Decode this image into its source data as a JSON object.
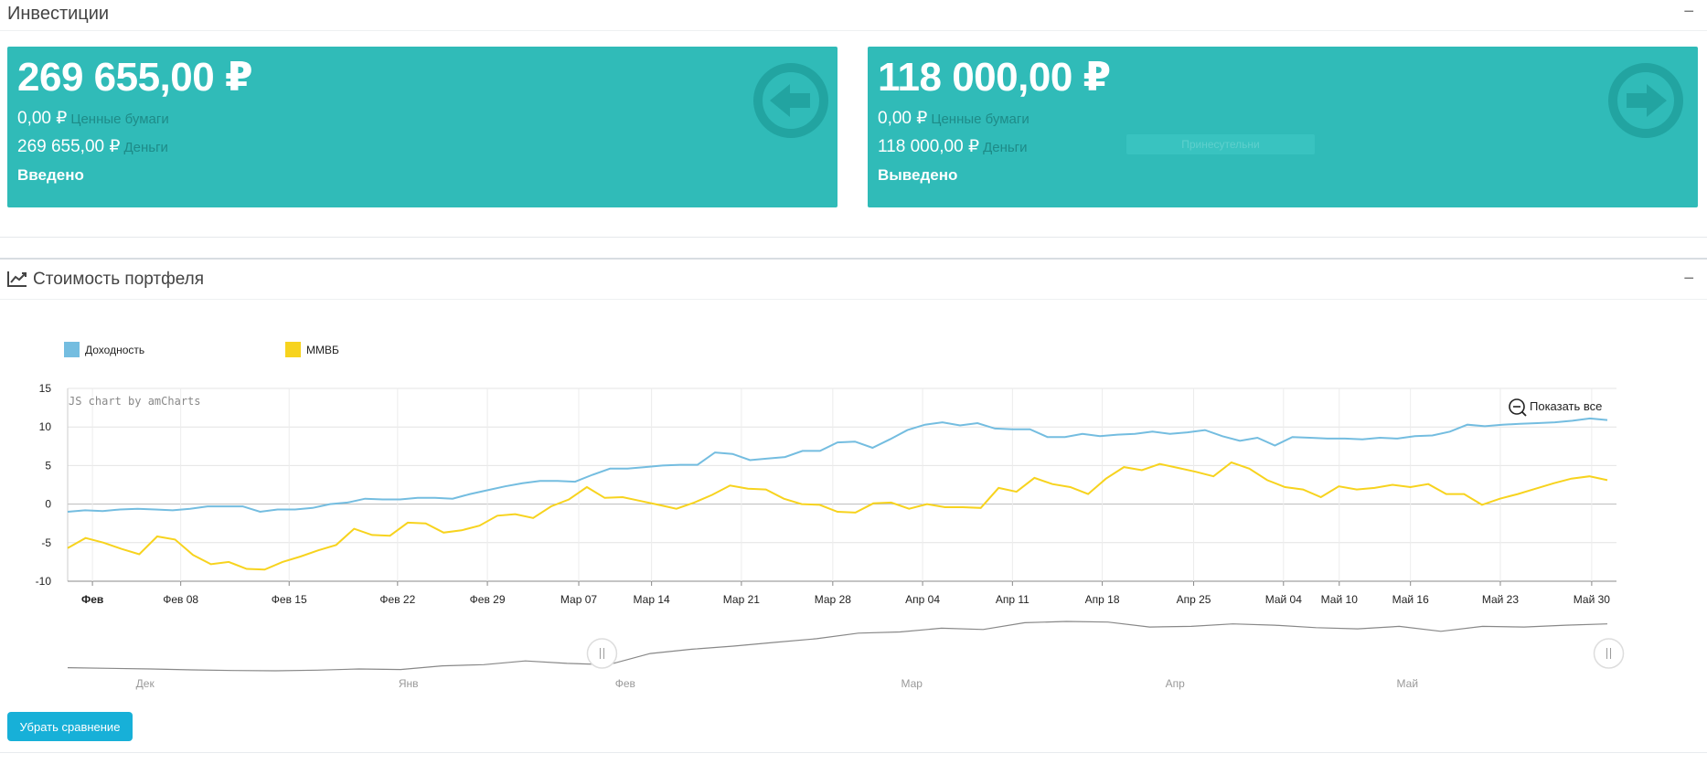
{
  "investments": {
    "title": "Инвестиции",
    "collapse": "−",
    "in": {
      "amount": "269 655,00 ₽",
      "securities_value": "0,00 ₽",
      "securities_label": "Ценные бумаги",
      "cash_value": "269 655,00 ₽",
      "cash_label": "Деньги",
      "caption": "Введено",
      "icon": "arrow-left-circle-icon"
    },
    "out": {
      "amount": "118 000,00 ₽",
      "securities_value": "0,00 ₽",
      "securities_label": "Ценные бумаги",
      "cash_value": "118 000,00 ₽",
      "cash_label": "Деньги",
      "caption": "Выведено",
      "ghost_tag": "Принесутельни",
      "icon": "arrow-right-circle-icon"
    }
  },
  "portfolio": {
    "title": "Стоимость портфеля",
    "icon": "line-chart-icon",
    "collapse": "−"
  },
  "chart_data": {
    "type": "line",
    "credit": "JS chart by amCharts",
    "zoom_out_label": "Показать все",
    "legend_position": "top-left",
    "grid": true,
    "ylim": [
      -10,
      15
    ],
    "y_ticks": [
      15,
      10,
      5,
      0,
      -5,
      -10
    ],
    "x_ticks": [
      "Фев",
      "Фев 08",
      "Фев 15",
      "Фев 22",
      "Фев 29",
      "Мар 07",
      "Мар 14",
      "Мар 21",
      "Мар 28",
      "Апр 04",
      "Апр 11",
      "Апр 18",
      "Апр 25",
      "Май 04",
      "Май 10",
      "Май 16",
      "Май 23",
      "Май 30"
    ],
    "x_tick_pos": [
      0.016,
      0.073,
      0.143,
      0.213,
      0.271,
      0.33,
      0.377,
      0.435,
      0.494,
      0.552,
      0.61,
      0.668,
      0.727,
      0.785,
      0.821,
      0.867,
      0.925,
      0.984
    ],
    "series": [
      {
        "name": "Доходность",
        "color": "#74bde0",
        "values": [
          -1.0,
          -0.8,
          -0.9,
          -0.7,
          -0.6,
          -0.7,
          -0.8,
          -0.6,
          -0.3,
          -0.3,
          -0.3,
          -1.0,
          -0.7,
          -0.7,
          -0.5,
          0.0,
          0.2,
          0.7,
          0.6,
          0.6,
          0.8,
          0.8,
          0.7,
          1.3,
          1.8,
          2.3,
          2.7,
          3.0,
          3.0,
          2.9,
          3.8,
          4.6,
          4.6,
          4.8,
          5.0,
          5.1,
          5.1,
          6.7,
          6.5,
          5.7,
          5.9,
          6.1,
          6.9,
          6.9,
          8.0,
          8.1,
          7.3,
          8.4,
          9.6,
          10.3,
          10.6,
          10.2,
          10.5,
          9.8,
          9.7,
          9.7,
          8.7,
          8.7,
          9.1,
          8.8,
          9.0,
          9.1,
          9.4,
          9.1,
          9.3,
          9.6,
          8.8,
          8.2,
          8.6,
          7.6,
          8.7,
          8.6,
          8.5,
          8.5,
          8.4,
          8.6,
          8.5,
          8.8,
          8.9,
          9.4,
          10.3,
          10.1,
          10.3,
          10.4,
          10.5,
          10.6,
          10.8,
          11.1,
          10.9
        ]
      },
      {
        "name": "ММВБ",
        "color": "#f7d31e",
        "values": [
          -5.7,
          -4.4,
          -5.0,
          -5.8,
          -6.5,
          -4.2,
          -4.6,
          -6.6,
          -7.8,
          -7.5,
          -8.4,
          -8.5,
          -7.5,
          -6.8,
          -6.0,
          -5.3,
          -3.2,
          -4.0,
          -4.1,
          -2.4,
          -2.5,
          -3.7,
          -3.4,
          -2.8,
          -1.5,
          -1.3,
          -1.8,
          -0.3,
          0.6,
          2.2,
          0.8,
          0.9,
          0.4,
          -0.1,
          -0.6,
          0.2,
          1.2,
          2.4,
          2.0,
          1.9,
          0.7,
          0.0,
          -0.1,
          -1.0,
          -1.1,
          0.1,
          0.2,
          -0.6,
          0.0,
          -0.4,
          -0.4,
          -0.5,
          2.1,
          1.6,
          3.4,
          2.6,
          2.2,
          1.3,
          3.3,
          4.8,
          4.4,
          5.2,
          4.7,
          4.2,
          3.6,
          5.4,
          4.6,
          3.1,
          2.2,
          1.9,
          0.9,
          2.3,
          1.9,
          2.1,
          2.5,
          2.2,
          2.6,
          1.3,
          1.3,
          -0.1,
          0.7,
          1.3,
          2.0,
          2.7,
          3.3,
          3.6,
          3.1
        ]
      }
    ],
    "scrollbar": {
      "month_labels": [
        "Дек",
        "Янв",
        "Фев",
        "Мар",
        "Апр",
        "Май"
      ],
      "month_pos": [
        0.05,
        0.22,
        0.36,
        0.545,
        0.715,
        0.865
      ],
      "start_handle": 0.345,
      "end_handle": 0.995,
      "values": [
        0.5,
        0.4,
        0.3,
        0.15,
        0.05,
        0.0,
        0.1,
        0.3,
        0.2,
        0.8,
        1.0,
        1.6,
        1.2,
        1.0,
        2.8,
        3.5,
        4.0,
        4.6,
        5.2,
        6.1,
        6.3,
        6.9,
        6.7,
        7.8,
        8.0,
        7.9,
        7.1,
        7.2,
        7.6,
        7.4,
        7.0,
        6.8,
        7.2,
        6.4,
        7.2,
        7.1,
        7.4,
        7.6
      ]
    }
  },
  "actions": {
    "remove_compare": "Убрать сравнение"
  }
}
